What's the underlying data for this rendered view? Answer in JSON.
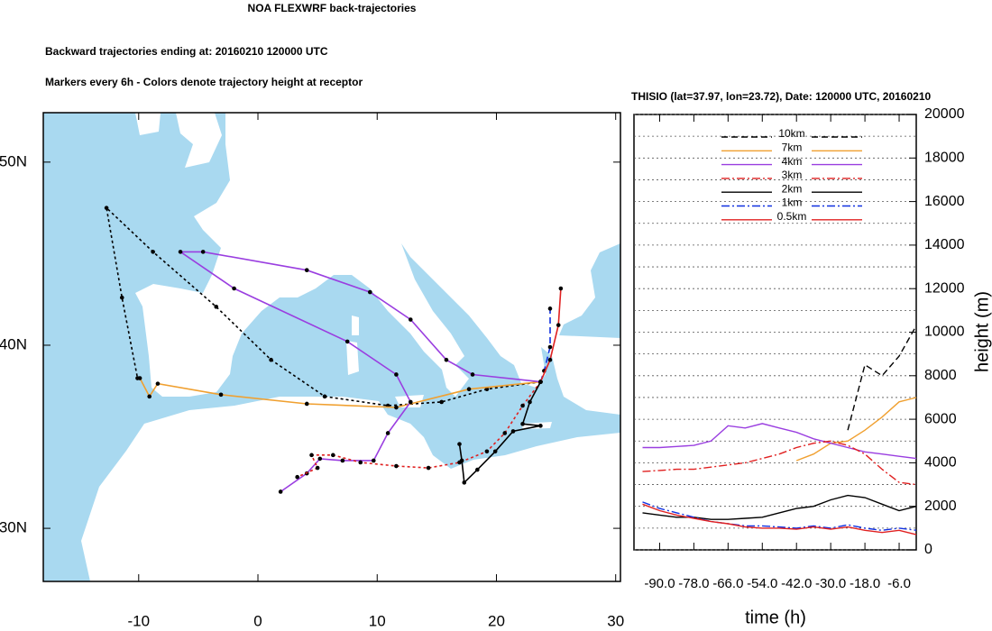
{
  "chart_data": [
    {
      "type": "map",
      "title": "NOA FLEXWRF back-trajectories",
      "subtitle": [
        "Backward trajectories ending at: 20160210  120000 UTC",
        "Markers every 6h - Colors denote trajectory height at receptor"
      ],
      "xlim": [
        -18,
        30.4
      ],
      "ylim": [
        27.1,
        52.7
      ],
      "xticks": [
        -10,
        0,
        10,
        20,
        30
      ],
      "yticks": [
        {
          "value": 30,
          "label": "30N"
        },
        {
          "value": 40,
          "label": "40N"
        },
        {
          "value": 50,
          "label": "50N"
        }
      ],
      "ocean_color": "#a9d9f0",
      "land_color": "#ffffff",
      "markers": true,
      "series": [
        {
          "color": "#000000",
          "style": "dotted",
          "x": [
            23.7,
            19.2,
            15.4,
            10.9,
            5.6,
            1.1,
            -3.5,
            -8.8,
            -12.7,
            -11.4,
            -10.1
          ],
          "values": [
            38.0,
            37.6,
            36.9,
            36.7,
            37.2,
            39.2,
            42.1,
            45.1,
            47.5,
            42.6,
            38.2
          ]
        },
        {
          "color": "#f0a030",
          "style": "solid",
          "x": [
            23.7,
            17.7,
            11.6,
            4.1,
            -3.1,
            -8.4,
            -9.1,
            -9.9
          ],
          "values": [
            38.0,
            37.6,
            36.6,
            36.8,
            37.3,
            37.9,
            37.2,
            38.2
          ]
        },
        {
          "color": "#9a3ee0",
          "style": "solid",
          "x": [
            23.7,
            18.0,
            15.8,
            12.8,
            9.4,
            4.1,
            -4.6,
            -6.5,
            -2.0,
            7.5,
            11.6,
            12.8,
            10.9,
            9.7,
            7.1,
            5.2,
            4.1,
            1.9
          ],
          "values": [
            38.0,
            38.4,
            39.2,
            41.4,
            42.9,
            44.1,
            45.1,
            45.1,
            43.1,
            40.2,
            38.4,
            36.9,
            35.2,
            33.7,
            33.7,
            33.8,
            33.0,
            32.0
          ]
        },
        {
          "color": "#e02020",
          "style": "dotted",
          "x": [
            23.7,
            22.2,
            20.7,
            19.2,
            16.9,
            14.3,
            11.6,
            8.6,
            6.3,
            4.5,
            5.0,
            3.3
          ],
          "values": [
            38.0,
            36.7,
            35.2,
            34.2,
            33.6,
            33.3,
            33.4,
            33.6,
            34.0,
            34.0,
            33.3,
            32.8
          ]
        },
        {
          "color": "#000000",
          "style": "solid",
          "x": [
            23.7,
            22.8,
            22.2,
            23.7,
            21.4,
            19.9,
            18.4,
            17.3,
            17.1,
            16.9
          ],
          "values": [
            38.0,
            36.9,
            35.7,
            35.6,
            35.3,
            34.2,
            33.2,
            32.5,
            33.7,
            34.6
          ]
        },
        {
          "color": "#1030e0",
          "style": "dashed",
          "x": [
            23.7,
            24.0,
            24.5,
            24.5
          ],
          "values": [
            38.0,
            38.6,
            39.9,
            42.0
          ]
        },
        {
          "color": "#e02020",
          "style": "solid",
          "x": [
            23.7,
            24.5,
            25.2,
            25.4
          ],
          "values": [
            38.0,
            39.2,
            41.1,
            43.1
          ]
        }
      ]
    },
    {
      "type": "line",
      "title": "THISIO (lat=37.97,  lon=23.72), Date: 120000 UTC, 20160210",
      "xlabel": "time (h)",
      "ylabel": "height (m)",
      "xlim": [
        -99,
        0
      ],
      "ylim": [
        0,
        20000
      ],
      "xticks": [
        {
          "value": -90,
          "label": "-90.0"
        },
        {
          "value": -78,
          "label": "-78.0"
        },
        {
          "value": -66,
          "label": "-66.0"
        },
        {
          "value": -54,
          "label": "-54.0"
        },
        {
          "value": -42,
          "label": "-42.0"
        },
        {
          "value": -30,
          "label": "-30.0"
        },
        {
          "value": -18,
          "label": "-18.0"
        },
        {
          "value": -6,
          "label": "-6.0"
        }
      ],
      "yticks": [
        0,
        2000,
        4000,
        6000,
        8000,
        10000,
        12000,
        14000,
        16000,
        18000,
        20000
      ],
      "yminorticks": [
        1000,
        3000,
        5000,
        7000,
        9000,
        11000,
        13000,
        15000,
        17000,
        19000
      ],
      "grid": true,
      "x": [
        -96,
        -90,
        -84,
        -78,
        -72,
        -66,
        -60,
        -54,
        -48,
        -42,
        -36,
        -30,
        -24,
        -18,
        -12,
        -6,
        0
      ],
      "series": [
        {
          "name": "10km",
          "color": "#000000",
          "style": "dashed",
          "values": [
            null,
            null,
            null,
            null,
            null,
            null,
            null,
            null,
            null,
            null,
            null,
            null,
            5500,
            8500,
            8000,
            8900,
            10300
          ]
        },
        {
          "name": "7km",
          "color": "#f0a030",
          "style": "solid",
          "values": [
            null,
            null,
            null,
            null,
            null,
            null,
            null,
            null,
            null,
            4100,
            4400,
            4900,
            5000,
            5500,
            6100,
            6800,
            7000
          ]
        },
        {
          "name": "4km",
          "color": "#9a3ee0",
          "style": "solid",
          "values": [
            4700,
            4700,
            4750,
            4800,
            5000,
            5700,
            5600,
            5800,
            5600,
            5400,
            5100,
            4900,
            4700,
            4500,
            4400,
            4300,
            4200
          ]
        },
        {
          "name": "3km",
          "color": "#e02020",
          "style": "dashdot",
          "values": [
            3600,
            3650,
            3700,
            3700,
            3800,
            3900,
            4000,
            4200,
            4400,
            4700,
            4900,
            5000,
            4800,
            4400,
            3700,
            3100,
            3000
          ]
        },
        {
          "name": "2km",
          "color": "#000000",
          "style": "solid",
          "values": [
            1700,
            1600,
            1500,
            1500,
            1400,
            1400,
            1450,
            1500,
            1700,
            1900,
            2000,
            2300,
            2500,
            2400,
            2100,
            1800,
            2000
          ]
        },
        {
          "name": "1km",
          "color": "#1030e0",
          "style": "dashdot",
          "values": [
            2200,
            1900,
            1700,
            1500,
            1300,
            1200,
            1100,
            1100,
            1050,
            1000,
            1100,
            1000,
            1150,
            1000,
            900,
            1000,
            900
          ]
        },
        {
          "name": "0.5km",
          "color": "#e02020",
          "style": "solid",
          "values": [
            2100,
            1800,
            1600,
            1450,
            1300,
            1200,
            1050,
            1000,
            1000,
            950,
            1050,
            950,
            1050,
            900,
            800,
            900,
            700
          ]
        }
      ]
    }
  ]
}
